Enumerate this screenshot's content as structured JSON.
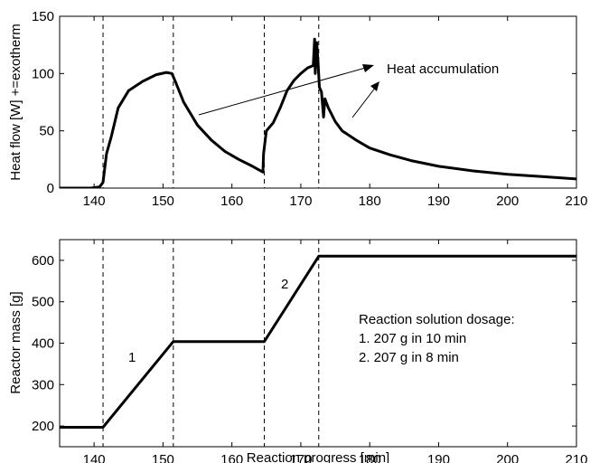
{
  "chart_data": [
    {
      "type": "line",
      "xlabel": "",
      "ylabel": "Heat flow [W] +=exotherm",
      "xlim": [
        135,
        210
      ],
      "ylim": [
        0,
        150
      ],
      "xticks": [
        140,
        150,
        160,
        170,
        180,
        190,
        200,
        210
      ],
      "yticks": [
        0,
        50,
        100,
        150
      ],
      "series": [
        {
          "x": [
            135,
            139.5,
            140.8,
            141.3,
            141.8,
            142.5,
            143.5,
            145,
            147,
            149,
            150.5,
            151.3,
            151.8,
            153,
            155,
            157,
            159,
            161,
            163,
            164.5,
            164.6,
            165,
            166,
            167,
            168,
            169,
            170,
            171,
            171.8,
            172.0,
            172.1,
            172.3,
            172.5,
            172.7,
            173.0,
            173.3,
            173.5,
            174,
            175,
            176,
            178,
            180,
            183,
            186,
            190,
            195,
            200,
            205,
            210
          ],
          "y": [
            0,
            0,
            1,
            5,
            30,
            45,
            70,
            85,
            93,
            99,
            101,
            100,
            93,
            75,
            55,
            42,
            32,
            25,
            19,
            14,
            30,
            50,
            57,
            70,
            85,
            94,
            100,
            105,
            107,
            130,
            100,
            127,
            110,
            88,
            84,
            62,
            78,
            70,
            58,
            50,
            42,
            35,
            29,
            24,
            19,
            15,
            12,
            10,
            8
          ]
        }
      ],
      "annotations": [
        {
          "text": "Heat accumulation",
          "x": 182,
          "y": 100
        }
      ],
      "vlines": [
        141.3,
        151.5,
        164.7,
        172.6
      ]
    },
    {
      "type": "line",
      "xlabel": "Reaction progress [min]",
      "ylabel": "Reactor mass [g]",
      "xlim": [
        135,
        210
      ],
      "ylim": [
        150,
        650
      ],
      "xticks": [
        140,
        150,
        160,
        170,
        180,
        190,
        200,
        210
      ],
      "yticks": [
        200,
        300,
        400,
        500,
        600
      ],
      "series": [
        {
          "x": [
            135,
            141.3,
            151.5,
            164.7,
            172.6,
            210
          ],
          "y": [
            197,
            197,
            404,
            404,
            610,
            610
          ]
        }
      ],
      "annotations": [
        {
          "text": "1",
          "x": 145.5,
          "y": 335
        },
        {
          "text": "2",
          "x": 167.8,
          "y": 565
        }
      ],
      "vlines": [
        141.3,
        151.5,
        164.7,
        172.6
      ],
      "legend_text": [
        "Reaction solution dosage:",
        "1. 207 g in 10 min",
        "2. 207 g in 8 min"
      ]
    }
  ]
}
